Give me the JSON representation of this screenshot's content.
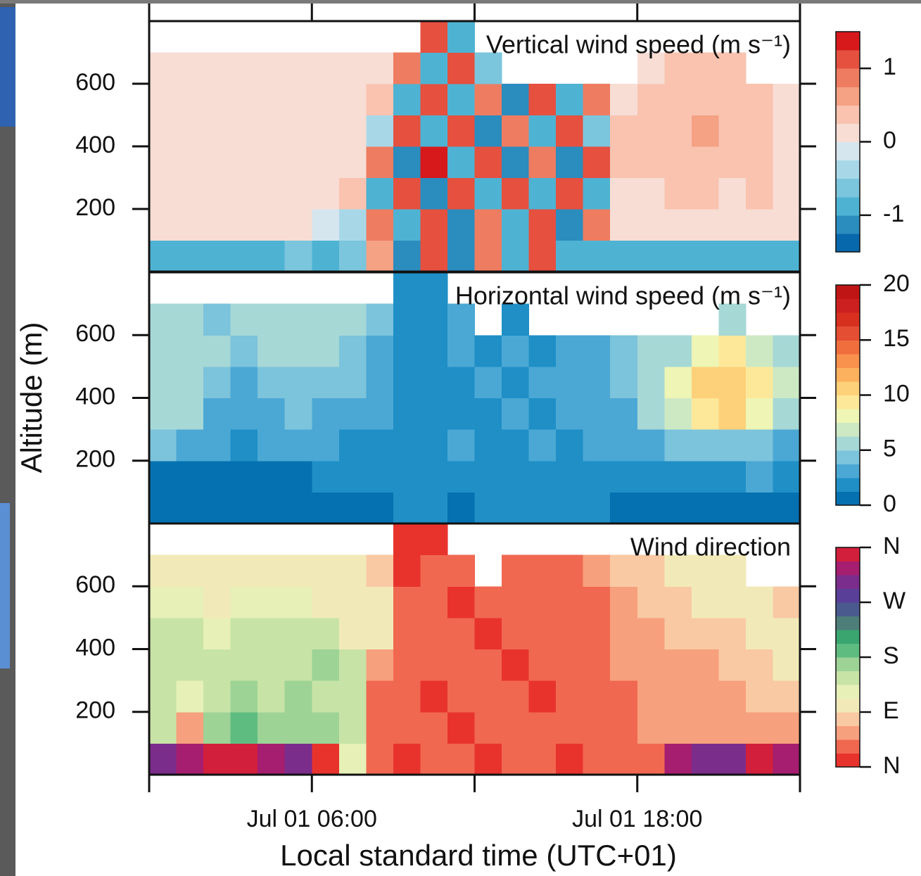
{
  "chart_data": [
    {
      "type": "heatmap",
      "title": "Vertical wind speed (m s⁻¹)",
      "xlim": [
        0,
        24
      ],
      "ylim": [
        0,
        800
      ],
      "yticks": [
        200,
        400,
        600
      ],
      "clim": [
        -1.5,
        1.5
      ],
      "cticks": [
        -1,
        0,
        1
      ],
      "colors": [
        "#0868ac",
        "#2b8cbe",
        "#4eb3d3",
        "#7bc5dd",
        "#a8d8e8",
        "#d6e6ee",
        "#f7ddd4",
        "#f9c3b0",
        "#f4a184",
        "#ee7c61",
        "#e5503f",
        "#d7191c"
      ],
      "z": [
        [
          -0.9,
          -0.8,
          -1.0,
          -0.8,
          -0.9,
          -0.7,
          -0.8,
          -0.6,
          0.7,
          -1.2,
          1.0,
          -1.1,
          0.9,
          -1.0,
          1.1,
          -0.9,
          -0.8,
          -0.9,
          -0.9,
          -1.0,
          -0.8,
          -0.9,
          -1.0,
          -0.9
        ],
        [
          0.1,
          0.1,
          0.0,
          0.1,
          0.1,
          0.1,
          -0.2,
          -0.4,
          0.9,
          -1.0,
          1.1,
          -1.1,
          0.9,
          -1.0,
          1.0,
          -1.2,
          0.8,
          0.1,
          0.2,
          0.1,
          0.2,
          0.1,
          0.2,
          0.1
        ],
        [
          0.1,
          0.2,
          0.1,
          0.1,
          0.2,
          0.1,
          0.1,
          0.3,
          -0.9,
          1.2,
          -1.2,
          1.0,
          -0.8,
          1.1,
          -0.9,
          1.2,
          -1.0,
          0.2,
          0.2,
          0.3,
          0.3,
          0.2,
          0.3,
          0.2
        ],
        [
          0.2,
          0.1,
          0.1,
          0.2,
          0.1,
          0.0,
          0.1,
          0.2,
          0.8,
          -1.1,
          1.3,
          -0.9,
          1.0,
          -1.2,
          0.8,
          -1.1,
          1.0,
          0.3,
          0.3,
          0.4,
          0.3,
          0.4,
          0.3,
          0.2
        ],
        [
          0.1,
          0.1,
          0.1,
          0.1,
          0.1,
          0.1,
          0.1,
          0.1,
          -0.4,
          1.2,
          -1.0,
          1.1,
          -1.2,
          0.9,
          -1.0,
          1.1,
          -0.7,
          0.3,
          0.4,
          0.3,
          0.5,
          0.3,
          0.4,
          0.2
        ],
        [
          0.1,
          0.0,
          0.1,
          0.1,
          0.0,
          0.1,
          0.0,
          0.1,
          0.3,
          -0.9,
          1.1,
          -1.0,
          0.9,
          -1.1,
          1.0,
          -0.8,
          0.9,
          0.2,
          0.3,
          0.4,
          0.3,
          0.4,
          0.3,
          0.2
        ],
        [
          0.05,
          0.05,
          0.05,
          0.05,
          0.05,
          0.05,
          0.05,
          0.05,
          0.05,
          0.8,
          -1.0,
          1.2,
          -0.6,
          null,
          null,
          null,
          null,
          null,
          0.2,
          0.3,
          0.3,
          0.3,
          null,
          null
        ],
        [
          null,
          null,
          null,
          null,
          null,
          null,
          null,
          null,
          null,
          null,
          1.0,
          -0.8,
          null,
          null,
          null,
          null,
          null,
          null,
          null,
          null,
          null,
          null,
          null,
          null
        ]
      ]
    },
    {
      "type": "heatmap",
      "title": "Horizontal wind speed (m s⁻¹)",
      "ylabel": "Altitude (m)",
      "xlim": [
        0,
        24
      ],
      "ylim": [
        0,
        800
      ],
      "yticks": [
        200,
        400,
        600
      ],
      "clim": [
        0,
        20
      ],
      "cticks": [
        0,
        5,
        10,
        15,
        20
      ],
      "colors": [
        "#0571b0",
        "#1f8fc6",
        "#4ba8d4",
        "#7cc3dc",
        "#a6d8d6",
        "#cde9c4",
        "#eef5b5",
        "#fde89a",
        "#fdd07a",
        "#fcb15e",
        "#f8914c",
        "#f06e3e",
        "#e44e33",
        "#d7301f",
        "#cc1f1f",
        "#bf1515"
      ],
      "z": [
        [
          1,
          1,
          1,
          1,
          1,
          1,
          1,
          1,
          1,
          2,
          2,
          1,
          2,
          2,
          2,
          2,
          2,
          1,
          1,
          1,
          1,
          1,
          1,
          1
        ],
        [
          1,
          1,
          1,
          1,
          1,
          1,
          2,
          2,
          2,
          2,
          2,
          2,
          2,
          2,
          2,
          2,
          2,
          2,
          2,
          2,
          2,
          2,
          3,
          2
        ],
        [
          4,
          3,
          3,
          2,
          3,
          3,
          3,
          2,
          2,
          2,
          2,
          3,
          2,
          2,
          3,
          2,
          3,
          3,
          3,
          4,
          4,
          4,
          4,
          3
        ],
        [
          6,
          5,
          3,
          3,
          3,
          4,
          3,
          3,
          3,
          2,
          2,
          2,
          2,
          3,
          2,
          3,
          3,
          3,
          5,
          7,
          9,
          10,
          8,
          6
        ],
        [
          6,
          5,
          4,
          3,
          4,
          4,
          4,
          4,
          3,
          2,
          2,
          2,
          3,
          2,
          3,
          3,
          3,
          4,
          6,
          8,
          11,
          11,
          9,
          7
        ],
        [
          5,
          5,
          5,
          4,
          6,
          5,
          5,
          4,
          3,
          2,
          2,
          3,
          2,
          3,
          2,
          3,
          3,
          4,
          5,
          6,
          8,
          9,
          7,
          5
        ],
        [
          5,
          5,
          4,
          5,
          6,
          5,
          6,
          5,
          4,
          2,
          2,
          3,
          null,
          2,
          null,
          null,
          null,
          null,
          null,
          null,
          null,
          6,
          null,
          null
        ],
        [
          null,
          null,
          null,
          null,
          null,
          null,
          null,
          null,
          null,
          2,
          2,
          null,
          null,
          null,
          null,
          null,
          null,
          null,
          null,
          null,
          null,
          null,
          null,
          null
        ]
      ]
    },
    {
      "type": "heatmap",
      "title": "Wind direction",
      "xlabel": "Local standard time (UTC+01)",
      "xlim": [
        0,
        24
      ],
      "ylim": [
        0,
        800
      ],
      "yticks": [
        200,
        400,
        600
      ],
      "xticks": [
        {
          "value": 0,
          "label": null
        },
        {
          "value": 6,
          "label": "Jul 01 06:00"
        },
        {
          "value": 12,
          "label": null
        },
        {
          "value": 18,
          "label": "Jul 01 18:00"
        },
        {
          "value": 24,
          "label": null
        }
      ],
      "clim": [
        0,
        360
      ],
      "cticks": [
        {
          "value": 0,
          "label": "N"
        },
        {
          "value": 90,
          "label": "E"
        },
        {
          "value": 180,
          "label": "S"
        },
        {
          "value": 270,
          "label": "W"
        },
        {
          "value": 360,
          "label": "N"
        }
      ],
      "colors": [
        "#e8332d",
        "#f06850",
        "#f7a07d",
        "#f9c9a3",
        "#f1eab8",
        "#e6f0b7",
        "#c8e3a6",
        "#9ed396",
        "#5fbc80",
        "#3aa56f",
        "#4e7e7a",
        "#4a5a8f",
        "#5a3f99",
        "#7b2d8c",
        "#a51e6f",
        "#d21f3c"
      ],
      "z": [
        [
          300,
          330,
          340,
          350,
          320,
          300,
          20,
          120,
          30,
          20,
          25,
          30,
          20,
          25,
          30,
          20,
          25,
          30,
          40,
          330,
          300,
          310,
          340,
          330
        ],
        [
          150,
          60,
          170,
          180,
          160,
          170,
          160,
          140,
          30,
          25,
          30,
          20,
          25,
          30,
          25,
          30,
          30,
          35,
          50,
          55,
          60,
          60,
          50,
          60
        ],
        [
          140,
          130,
          150,
          160,
          150,
          160,
          155,
          150,
          40,
          30,
          20,
          25,
          30,
          25,
          20,
          30,
          30,
          40,
          55,
          60,
          60,
          65,
          70,
          85
        ],
        [
          150,
          140,
          150,
          150,
          140,
          150,
          160,
          140,
          60,
          30,
          25,
          30,
          25,
          20,
          30,
          30,
          35,
          50,
          55,
          60,
          65,
          70,
          80,
          90
        ],
        [
          140,
          140,
          130,
          140,
          150,
          140,
          150,
          110,
          90,
          25,
          30,
          25,
          20,
          30,
          25,
          30,
          40,
          50,
          60,
          70,
          80,
          85,
          90,
          90
        ],
        [
          130,
          120,
          110,
          120,
          130,
          120,
          110,
          100,
          90,
          30,
          25,
          20,
          30,
          25,
          30,
          35,
          40,
          60,
          70,
          80,
          90,
          90,
          90,
          85
        ],
        [
          110,
          100,
          105,
          100,
          110,
          100,
          100,
          95,
          85,
          20,
          30,
          25,
          null,
          30,
          25,
          30,
          50,
          70,
          80,
          90,
          90,
          90,
          null,
          null
        ],
        [
          null,
          null,
          null,
          null,
          null,
          null,
          null,
          null,
          null,
          20,
          20,
          null,
          null,
          null,
          null,
          null,
          null,
          null,
          null,
          null,
          null,
          null,
          null,
          null
        ]
      ]
    }
  ]
}
